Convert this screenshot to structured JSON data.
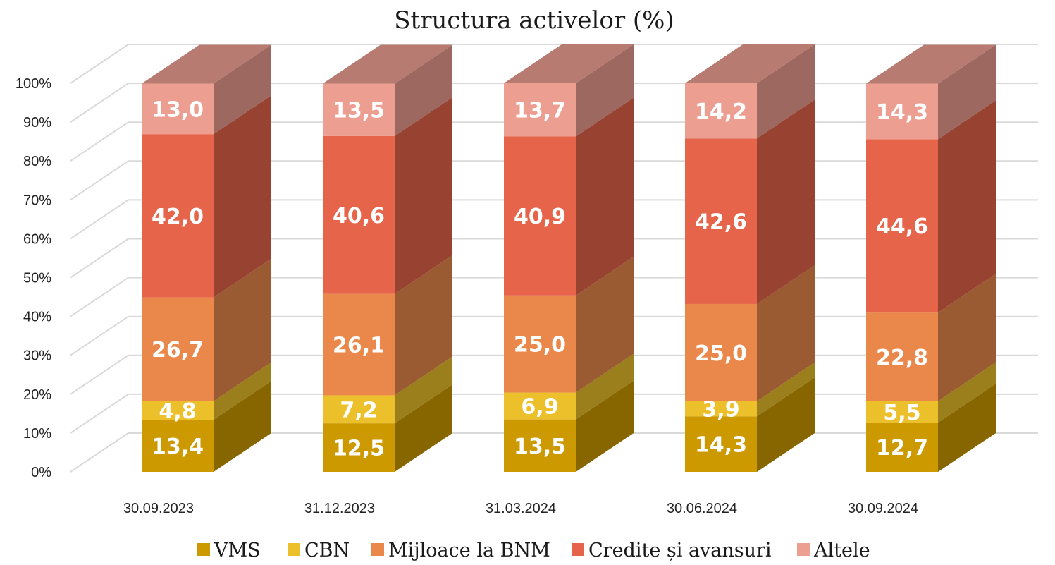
{
  "chart_data": {
    "type": "bar",
    "stacked": true,
    "three_d": true,
    "title": "Structura activelor (%)",
    "categories": [
      "30.09.2023",
      "31.12.2023",
      "31.03.2024",
      "30.06.2024",
      "30.09.2024"
    ],
    "series": [
      {
        "name": "VMS",
        "color": "#CC9A00",
        "values": [
          13.4,
          12.5,
          13.5,
          14.3,
          12.7
        ],
        "labels": [
          "13,4",
          "12,5",
          "13,5",
          "14,3",
          "12,7"
        ]
      },
      {
        "name": "CBN",
        "color": "#EBC02B",
        "values": [
          4.8,
          7.2,
          6.9,
          3.9,
          5.5
        ],
        "labels": [
          "4,8",
          "7,2",
          "6,9",
          "3,9",
          "5,5"
        ]
      },
      {
        "name": "Mijloace la BNM",
        "color": "#EA884C",
        "values": [
          26.7,
          26.1,
          25.0,
          25.0,
          22.8
        ],
        "labels": [
          "26,7",
          "26,1",
          "25,0",
          "25,0",
          "22,8"
        ]
      },
      {
        "name": "Credite și avansuri",
        "color": "#E6644A",
        "values": [
          42.0,
          40.6,
          40.9,
          42.6,
          44.6
        ],
        "labels": [
          "42,0",
          "40,6",
          "40,9",
          "42,6",
          "44,6"
        ]
      },
      {
        "name": "Altele",
        "color": "#EC9E91",
        "values": [
          13.0,
          13.5,
          13.7,
          14.2,
          14.3
        ],
        "labels": [
          "13,0",
          "13,5",
          "13,7",
          "14,2",
          "14,3"
        ]
      }
    ],
    "y_ticks": [
      "0%",
      "10%",
      "20%",
      "30%",
      "40%",
      "50%",
      "60%",
      "70%",
      "80%",
      "90%",
      "100%"
    ],
    "ylim": [
      0,
      100
    ],
    "grid": true,
    "legend_position": "bottom",
    "xlabel": "",
    "ylabel": ""
  }
}
